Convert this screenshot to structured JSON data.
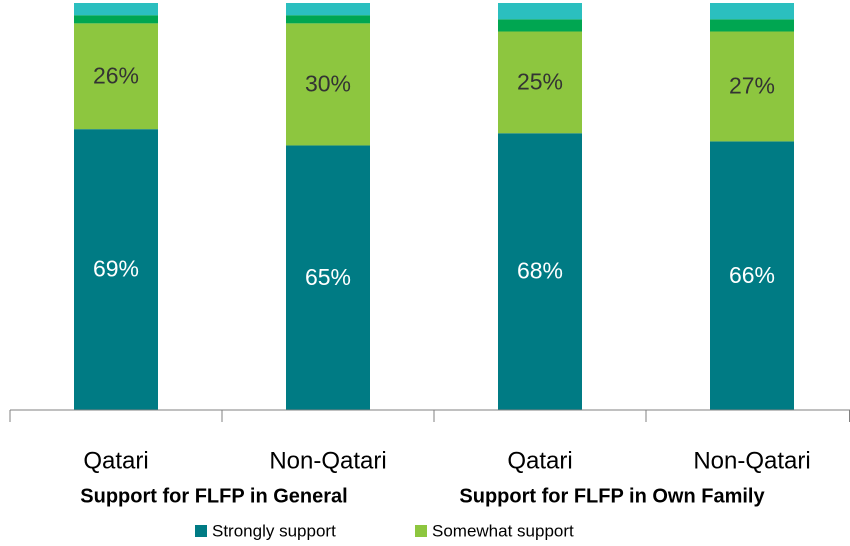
{
  "chart_data": {
    "type": "stacked_bar",
    "categories": [
      "Qatari",
      "Non-Qatari",
      "Qatari",
      "Non-Qatari"
    ],
    "group_labels": [
      "Support for FLFP in General",
      "Support for FLFP in Own Family"
    ],
    "series": [
      {
        "name": "Strongly support",
        "color": "#007b84",
        "label_color": "#ffffff",
        "values": [
          69,
          65,
          68,
          66
        ],
        "value_labels": [
          "69%",
          "65%",
          "68%",
          "66%"
        ]
      },
      {
        "name": "Somewhat support",
        "color": "#8dc63f",
        "label_color": "#333333",
        "values": [
          26,
          30,
          25,
          27
        ],
        "value_labels": [
          "26%",
          "30%",
          "25%",
          "27%"
        ]
      },
      {
        "color": "#00a651",
        "values": [
          2,
          2,
          3,
          3
        ]
      },
      {
        "color": "#2bbfbf",
        "values": [
          3,
          3,
          4,
          4
        ]
      }
    ],
    "ylim": [
      0,
      100
    ],
    "legend": "bottom"
  }
}
